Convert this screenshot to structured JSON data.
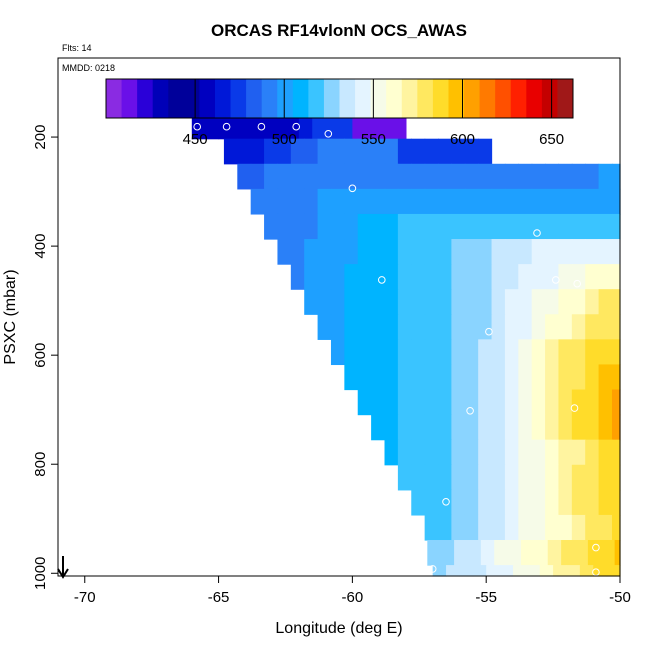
{
  "chart_data": {
    "type": "heatmap",
    "title": "ORCAS RF14vlonN OCS_AWAS",
    "flights_note": "Flts: 14",
    "date_note": "MMDD: 0218",
    "xlabel": "Longitude (deg E)",
    "ylabel": "PSXC (mbar)",
    "xlim": [
      -71,
      -50
    ],
    "ylim": [
      1005,
      55
    ],
    "x_ticks": [
      -70,
      -65,
      -60,
      -55,
      -50
    ],
    "x_tick_labels": [
      "-70",
      "-65",
      "-60",
      "-55",
      "-50"
    ],
    "y_ticks": [
      200,
      400,
      600,
      800,
      1000
    ],
    "y_tick_labels": [
      "200",
      "400",
      "600",
      "800",
      "1000"
    ],
    "colorbar": {
      "range": [
        400,
        662
      ],
      "ticks": [
        450,
        500,
        550,
        600,
        650
      ],
      "tick_labels": [
        "450",
        "500",
        "550",
        "600",
        "650"
      ],
      "colors": [
        "#8a2be2",
        "#6a10e8",
        "#2a00d8",
        "#0000b8",
        "#00009a",
        "#00009a",
        "#0000c0",
        "#0018d8",
        "#0a3ae8",
        "#2060f0",
        "#2a80f8",
        "#1ea0ff",
        "#00b4ff",
        "#3ac4ff",
        "#8ad4ff",
        "#c8e8ff",
        "#e4f4ff",
        "#f6fbe8",
        "#ffffd0",
        "#fff4a0",
        "#ffe860",
        "#ffdc2a",
        "#ffc000",
        "#ffa000",
        "#ff7a00",
        "#ff5000",
        "#ff2000",
        "#e80000",
        "#c40000",
        "#a01818"
      ]
    },
    "cell_width_deg": 0.5,
    "cell_height_mbar": 46,
    "rows": [
      {
        "p": 180,
        "x0": -66.0,
        "values": [
          457,
          457,
          457,
          457,
          457,
          457,
          457,
          458,
          465,
          470,
          470,
          470,
          410,
          410,
          410,
          410
        ]
      },
      {
        "p": 226,
        "x0": -64.8,
        "values": [
          468,
          468,
          468,
          470,
          472,
          480,
          487,
          490,
          490,
          490,
          490,
          490,
          490,
          475,
          470,
          470,
          470,
          470,
          470,
          470
        ]
      },
      {
        "p": 272,
        "x0": -64.3,
        "values": [
          480,
          485,
          490,
          492,
          495,
          495,
          495,
          495,
          495,
          495,
          495,
          495,
          495,
          495,
          495,
          495,
          495,
          495,
          495,
          495,
          495,
          495,
          495,
          495,
          495,
          495,
          495,
          497,
          497,
          497
        ]
      },
      {
        "p": 318,
        "x0": -63.8,
        "values": [
          488,
          490,
          493,
          493,
          495,
          497,
          500,
          500,
          500,
          500,
          500,
          500,
          500,
          500,
          500,
          500,
          500,
          500,
          500,
          500,
          500,
          500,
          500,
          500,
          500,
          500,
          500,
          500,
          500,
          502,
          505,
          507,
          507,
          507
        ]
      },
      {
        "p": 364,
        "x0": -63.3,
        "values": [
          490,
          493,
          495,
          495,
          497,
          500,
          502,
          505,
          508,
          510,
          515,
          518,
          520,
          520,
          520,
          520,
          520,
          520,
          520,
          520,
          520,
          520,
          520,
          520,
          520,
          520,
          520,
          520,
          520,
          520,
          520,
          520,
          520,
          520,
          520,
          520,
          520,
          520,
          520,
          520,
          520,
          520,
          520,
          520,
          520,
          520
        ]
      },
      {
        "p": 410,
        "x0": -62.8,
        "values": [
          493,
          495,
          497,
          497,
          500,
          503,
          505,
          508,
          512,
          515,
          518,
          520,
          522,
          525,
          527,
          530,
          532,
          535,
          538,
          540,
          540,
          540,
          540,
          540,
          540,
          540,
          540,
          540,
          540,
          540,
          540,
          540,
          540,
          540,
          540,
          540,
          540,
          540,
          540,
          540,
          540,
          540,
          540,
          540,
          540,
          540,
          540,
          540,
          540,
          540,
          600,
          600,
          600,
          600
        ]
      },
      {
        "p": 456,
        "x0": -62.3,
        "values": [
          495,
          497,
          500,
          502,
          505,
          508,
          510,
          512,
          515,
          518,
          520,
          522,
          525,
          528,
          530,
          532,
          535,
          540,
          545,
          548,
          550,
          555,
          560,
          562,
          565,
          567,
          567,
          567,
          567,
          567,
          567,
          567,
          567,
          567,
          567,
          567,
          567,
          567,
          567,
          567,
          567,
          567,
          567,
          567,
          567,
          567,
          545,
          600,
          620,
          630
        ]
      },
      {
        "p": 502,
        "x0": -61.8,
        "values": [
          497,
          500,
          502,
          505,
          508,
          510,
          512,
          515,
          518,
          520,
          522,
          525,
          528,
          530,
          535,
          540,
          545,
          550,
          555,
          560,
          565,
          570,
          575,
          578,
          580,
          580,
          582,
          582,
          582,
          582,
          582,
          582,
          582,
          582,
          582,
          582,
          582,
          582,
          582,
          582,
          582,
          582,
          582,
          582,
          582,
          582,
          590,
          600,
          640
        ]
      },
      {
        "p": 548,
        "x0": -61.3,
        "values": [
          500,
          502,
          505,
          508,
          510,
          512,
          515,
          518,
          520,
          522,
          525,
          528,
          530,
          535,
          540,
          548,
          555,
          560,
          565,
          570,
          575,
          578,
          580,
          580,
          582,
          582,
          582,
          582,
          582,
          582,
          582,
          582,
          582,
          582,
          582,
          582,
          582,
          582,
          582,
          582,
          582,
          582,
          582,
          582,
          582,
          582,
          582,
          582,
          600
        ]
      },
      {
        "p": 594,
        "x0": -60.8,
        "values": [
          502,
          505,
          508,
          510,
          512,
          515,
          518,
          520,
          522,
          525,
          528,
          532,
          538,
          545,
          552,
          560,
          568,
          575,
          580,
          585,
          588,
          590,
          590,
          590,
          590,
          590,
          590,
          590,
          590,
          590,
          590,
          590,
          590,
          590,
          590,
          590,
          590,
          590,
          590,
          590,
          590,
          590,
          590,
          590,
          590,
          590,
          590
        ]
      },
      {
        "p": 640,
        "x0": -60.3,
        "values": [
          505,
          508,
          510,
          512,
          515,
          518,
          520,
          522,
          525,
          528,
          532,
          538,
          545,
          552,
          560,
          568,
          575,
          582,
          590,
          595,
          598,
          598,
          598,
          598,
          598,
          598,
          598,
          598,
          598,
          598,
          598,
          598,
          598,
          598,
          598,
          598,
          598,
          598,
          598,
          598,
          598,
          598,
          598,
          598,
          598
        ]
      },
      {
        "p": 686,
        "x0": -59.8,
        "values": [
          507,
          510,
          512,
          515,
          518,
          520,
          522,
          525,
          528,
          532,
          538,
          545,
          552,
          560,
          568,
          576,
          584,
          592,
          600,
          602,
          605,
          605,
          608,
          610,
          612,
          620,
          630,
          640,
          650,
          655,
          658,
          658,
          658,
          658,
          658,
          658,
          640,
          640,
          640,
          640,
          640,
          640,
          640,
          640
        ]
      },
      {
        "p": 732,
        "x0": -59.3,
        "values": [
          510,
          512,
          515,
          518,
          520,
          522,
          525,
          528,
          532,
          538,
          545,
          552,
          560,
          568,
          576,
          584,
          592,
          600,
          605,
          610,
          612,
          612,
          612,
          612,
          612,
          620,
          625,
          625,
          625,
          625,
          625,
          625,
          625,
          625,
          625,
          625,
          625,
          625,
          625,
          625,
          625,
          625
        ]
      },
      {
        "p": 778,
        "x0": -58.8,
        "values": [
          512,
          515,
          518,
          520,
          522,
          525,
          528,
          532,
          538,
          545,
          550,
          556,
          562,
          568,
          574,
          580,
          586,
          592,
          596,
          598,
          598,
          598,
          598,
          598,
          598,
          598,
          598,
          598,
          598,
          598,
          598,
          598,
          598,
          598,
          598,
          598,
          598,
          598,
          598,
          598,
          598
        ]
      },
      {
        "p": 824,
        "x0": -58.3,
        "values": [
          515,
          518,
          520,
          522,
          525,
          528,
          532,
          538,
          545,
          550,
          556,
          562,
          568,
          575,
          580,
          585,
          590,
          594,
          596,
          598,
          598,
          598,
          598,
          598,
          598,
          598,
          598,
          598,
          598,
          598,
          598,
          598,
          598,
          598,
          598,
          598,
          598,
          598,
          598
        ]
      },
      {
        "p": 870,
        "x0": -57.8,
        "values": [
          518,
          520,
          522,
          525,
          528,
          532,
          538,
          545,
          550,
          556,
          562,
          568,
          575,
          580,
          585,
          590,
          594,
          596,
          598,
          598,
          598,
          598,
          598,
          598,
          598,
          598,
          598,
          598,
          598,
          598,
          598,
          598,
          598,
          598,
          598,
          598,
          598
        ]
      },
      {
        "p": 916,
        "x0": -57.3,
        "values": [
          520,
          522,
          525,
          528,
          532,
          538,
          545,
          550,
          555,
          560,
          565,
          570,
          575,
          580,
          585,
          590,
          594,
          596,
          598,
          598,
          598,
          598,
          598,
          598,
          598,
          598,
          598,
          598,
          598,
          598,
          598,
          598,
          598,
          598,
          598,
          598
        ]
      },
      {
        "p": 962,
        "x0": -57.2,
        "values": [
          525,
          528,
          532,
          538,
          545,
          550,
          555,
          560,
          565,
          570,
          575,
          580,
          585,
          590,
          594,
          596,
          598,
          600,
          602,
          605,
          608,
          612,
          616,
          620,
          625,
          630,
          635,
          640,
          645,
          650,
          655,
          660,
          660
        ]
      },
      {
        "p": 1008,
        "x0": -57.0,
        "values": [
          530,
          532,
          535,
          538,
          542,
          546,
          550,
          556,
          562,
          568,
          574,
          580,
          585,
          590,
          595,
          600,
          605,
          610,
          615,
          620,
          625,
          630,
          635,
          640,
          645,
          650,
          655,
          660,
          660,
          660,
          660,
          660
        ]
      }
    ],
    "sample_points": [
      {
        "x": -65.8,
        "p": 181
      },
      {
        "x": -64.7,
        "p": 181
      },
      {
        "x": -63.4,
        "p": 181
      },
      {
        "x": -62.1,
        "p": 181
      },
      {
        "x": -60.9,
        "p": 194
      },
      {
        "x": -60.0,
        "p": 294
      },
      {
        "x": -53.1,
        "p": 376
      },
      {
        "x": -58.9,
        "p": 462
      },
      {
        "x": -52.4,
        "p": 462
      },
      {
        "x": -51.6,
        "p": 469
      },
      {
        "x": -55.6,
        "p": 702
      },
      {
        "x": -51.7,
        "p": 697
      },
      {
        "x": -56.5,
        "p": 869
      },
      {
        "x": -57.3,
        "p": 1001
      },
      {
        "x": -57.0,
        "p": 992
      },
      {
        "x": -50.9,
        "p": 953
      },
      {
        "x": -50.9,
        "p": 998
      },
      {
        "x": -54.9,
        "p": 557
      }
    ],
    "arrow_note": "downward arrow"
  }
}
